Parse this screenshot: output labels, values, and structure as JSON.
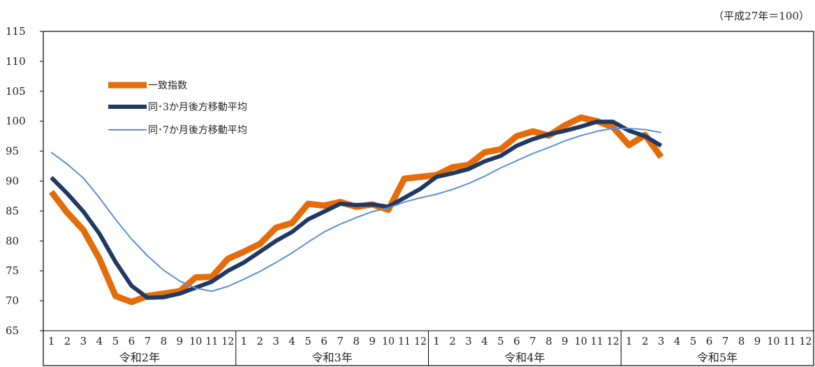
{
  "unit_note": "（平成27年＝100）",
  "chart_data": {
    "type": "line",
    "title": "",
    "ylim": [
      65,
      115
    ],
    "yticks": [
      65,
      70,
      75,
      80,
      85,
      90,
      95,
      100,
      105,
      110,
      115
    ],
    "x_ticks": [
      "1",
      "2",
      "3",
      "4",
      "5",
      "6",
      "7",
      "8",
      "9",
      "10",
      "11",
      "12",
      "1",
      "2",
      "3",
      "4",
      "5",
      "6",
      "7",
      "8",
      "9",
      "10",
      "11",
      "12",
      "1",
      "2",
      "3",
      "4",
      "5",
      "6",
      "7",
      "8",
      "9",
      "10",
      "11",
      "12",
      "1",
      "2",
      "3",
      "4",
      "5",
      "6",
      "7",
      "8",
      "9",
      "10",
      "11",
      "12"
    ],
    "year_groups": [
      "令和2年",
      "令和3年",
      "令和4年",
      "令和5年"
    ],
    "grid": false,
    "legend_position": "top-left",
    "series": [
      {
        "name": "一致指数",
        "color": "#E46C0A",
        "values": [
          88.2,
          84.7,
          81.8,
          77.0,
          70.8,
          69.8,
          70.8,
          71.2,
          71.6,
          73.9,
          74.0,
          77.0,
          78.2,
          79.5,
          82.2,
          83.0,
          86.2,
          85.9,
          86.5,
          85.7,
          86.1,
          85.2,
          90.4,
          90.7,
          91.0,
          92.3,
          92.7,
          94.8,
          95.3,
          97.5,
          98.3,
          97.6,
          99.3,
          100.6,
          100.0,
          99.0,
          96.0,
          97.7,
          94.0
        ]
      },
      {
        "name": "同･3か月後方移動平均",
        "color": "#1F3864",
        "values": [
          90.6,
          87.9,
          84.9,
          81.2,
          76.5,
          72.5,
          70.5,
          70.6,
          71.2,
          72.2,
          73.2,
          75.0,
          76.4,
          78.2,
          80.0,
          81.5,
          83.6,
          84.9,
          86.2,
          86.0,
          86.1,
          85.7,
          87.2,
          88.7,
          90.7,
          91.3,
          92.0,
          93.3,
          94.2,
          95.9,
          97.0,
          97.8,
          98.4,
          99.1,
          99.9,
          99.9,
          98.4,
          97.5,
          95.9
        ]
      },
      {
        "name": "同･7か月後方移動平均",
        "color": "#5B8FD5",
        "values": [
          94.8,
          92.8,
          90.5,
          87.2,
          83.6,
          80.3,
          77.5,
          75.1,
          73.3,
          72.1,
          71.6,
          72.4,
          73.6,
          74.9,
          76.4,
          78.0,
          79.8,
          81.5,
          82.8,
          83.9,
          84.9,
          85.5,
          86.5,
          87.2,
          87.8,
          88.6,
          89.6,
          90.8,
          92.2,
          93.4,
          94.6,
          95.6,
          96.7,
          97.6,
          98.3,
          98.8,
          98.8,
          98.6,
          98.1
        ]
      }
    ]
  }
}
